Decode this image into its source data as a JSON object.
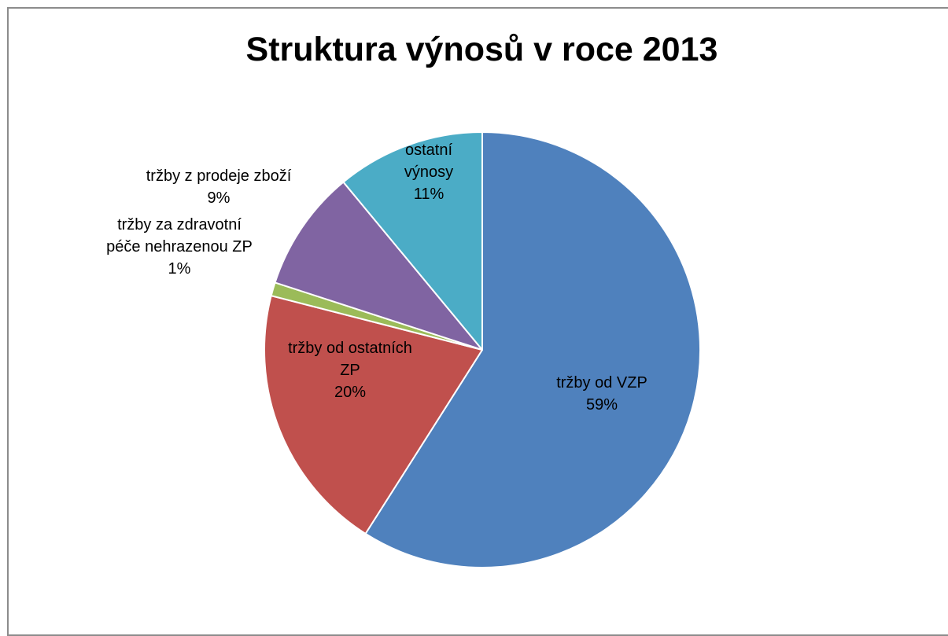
{
  "chart_data": {
    "type": "pie",
    "title": "Struktura výnosů v roce 2013",
    "start_angle_deg": 0,
    "direction": "clockwise",
    "slices": [
      {
        "label": "tržby od VZP",
        "label_lines": [
          "tržby od VZP",
          "59%"
        ],
        "value": 59,
        "percent_label": "59%",
        "color": "#4f81bd",
        "label_position": "inside"
      },
      {
        "label": "tržby od ostatních ZP",
        "label_lines": [
          "tržby od ostatních",
          "ZP",
          "20%"
        ],
        "value": 20,
        "percent_label": "20%",
        "color": "#c0504d",
        "label_position": "inside"
      },
      {
        "label": "tržby za zdravotní péče nehrazenou ZP",
        "label_lines": [
          "tržby za zdravotní",
          "péče nehrazenou ZP",
          "1%"
        ],
        "value": 1,
        "percent_label": "1%",
        "color": "#9bbb59",
        "label_position": "outside"
      },
      {
        "label": "tržby z prodeje zboží",
        "label_lines": [
          "tržby z prodeje zboží",
          "9%"
        ],
        "value": 9,
        "percent_label": "9%",
        "color": "#8064a2",
        "label_position": "outside"
      },
      {
        "label": "ostatní výnosy",
        "label_lines": [
          "ostatní",
          "výnosy",
          "11%"
        ],
        "value": 11,
        "percent_label": "11%",
        "color": "#4bacc6",
        "label_position": "inside"
      }
    ]
  }
}
